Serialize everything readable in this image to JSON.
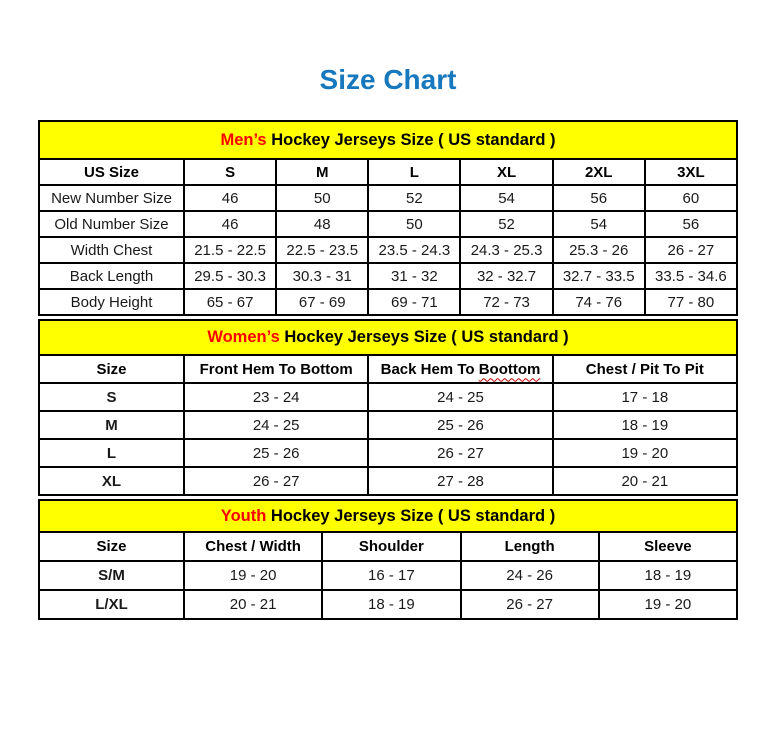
{
  "page": {
    "title": "Size Chart",
    "title_color": "#1778BE",
    "band_background": "#FFFF00",
    "band_highlight_color": "#FF0000",
    "border_color": "#000000"
  },
  "tables": [
    {
      "id": "mens",
      "band": {
        "highlight": "Men’s",
        "rest": " Hockey Jerseys Size ( US standard )"
      },
      "columns": [
        {
          "label": "US Size"
        },
        {
          "label": "S"
        },
        {
          "label": "M"
        },
        {
          "label": "L"
        },
        {
          "label": "XL"
        },
        {
          "label": "2XL"
        },
        {
          "label": "3XL"
        }
      ],
      "rows": [
        {
          "label": "New Number Size",
          "values": [
            "46",
            "50",
            "52",
            "54",
            "56",
            "60"
          ]
        },
        {
          "label": "Old Number Size",
          "values": [
            "46",
            "48",
            "50",
            "52",
            "54",
            "56"
          ]
        },
        {
          "label": "Width Chest",
          "values": [
            "21.5 - 22.5",
            "22.5 - 23.5",
            "23.5 - 24.3",
            "24.3 - 25.3",
            "25.3 - 26",
            "26 - 27"
          ]
        },
        {
          "label": "Back Length",
          "values": [
            "29.5 - 30.3",
            "30.3 - 31",
            "31 - 32",
            "32 - 32.7",
            "32.7 - 33.5",
            "33.5 - 34.6"
          ]
        },
        {
          "label": "Body Height",
          "values": [
            "65 - 67",
            "67 - 69",
            "69 - 71",
            "72 - 73",
            "74 - 76",
            "77 - 80"
          ]
        }
      ]
    },
    {
      "id": "womens",
      "band": {
        "highlight": "Women’s",
        "rest": " Hockey Jerseys Size ( US standard )"
      },
      "columns": [
        {
          "label": "Size"
        },
        {
          "label": "Front Hem To Bottom"
        },
        {
          "label": "Back Hem To ",
          "misspelled": "Boottom"
        },
        {
          "label": "Chest / Pit To Pit"
        }
      ],
      "rows": [
        {
          "label": "S",
          "values": [
            "23 - 24",
            "24 - 25",
            "17 - 18"
          ]
        },
        {
          "label": "M",
          "values": [
            "24 - 25",
            "25 - 26",
            "18 - 19"
          ]
        },
        {
          "label": "L",
          "values": [
            "25 - 26",
            "26 - 27",
            "19 - 20"
          ]
        },
        {
          "label": "XL",
          "values": [
            "26 - 27",
            "27 - 28",
            "20 - 21"
          ]
        }
      ]
    },
    {
      "id": "youth",
      "band": {
        "highlight": "Youth",
        "rest": " Hockey Jerseys Size ( US standard )"
      },
      "columns": [
        {
          "label": "Size"
        },
        {
          "label": "Chest / Width"
        },
        {
          "label": "Shoulder"
        },
        {
          "label": "Length"
        },
        {
          "label": "Sleeve"
        }
      ],
      "rows": [
        {
          "label": "S/M",
          "values": [
            "19 - 20",
            "16 - 17",
            "24 - 26",
            "18 - 19"
          ]
        },
        {
          "label": "L/XL",
          "values": [
            "20 - 21",
            "18 - 19",
            "26 - 27",
            "19 - 20"
          ]
        }
      ]
    }
  ]
}
